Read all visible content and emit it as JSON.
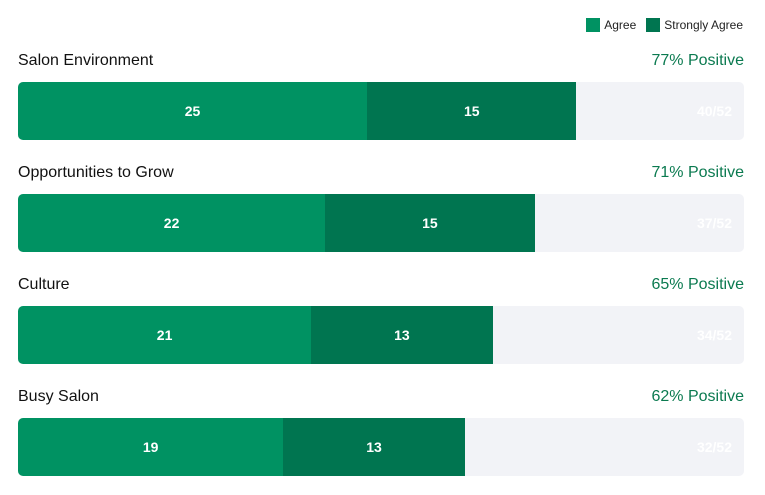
{
  "legend": [
    {
      "label": "Agree",
      "color": "#009262"
    },
    {
      "label": "Strongly Agree",
      "color": "#007550"
    }
  ],
  "colors": {
    "agree": "#009262",
    "strongly_agree": "#007550",
    "track": "#f2f3f7",
    "positive_text": "#0b7a50"
  },
  "chart_data": {
    "type": "bar",
    "orientation": "horizontal-stacked",
    "max": 52,
    "series": [
      {
        "name": "Agree",
        "values": [
          25,
          22,
          21,
          19
        ]
      },
      {
        "name": "Strongly Agree",
        "values": [
          15,
          15,
          13,
          13
        ]
      }
    ],
    "rows": [
      {
        "category": "Salon Environment",
        "agree": 25,
        "strongly_agree": 15,
        "positive": "77% Positive",
        "total_label": "40/52"
      },
      {
        "category": "Opportunities to Grow",
        "agree": 22,
        "strongly_agree": 15,
        "positive": "71% Positive",
        "total_label": "37/52"
      },
      {
        "category": "Culture",
        "agree": 21,
        "strongly_agree": 13,
        "positive": "65% Positive",
        "total_label": "34/52"
      },
      {
        "category": "Busy Salon",
        "agree": 19,
        "strongly_agree": 13,
        "positive": "62% Positive",
        "total_label": "32/52"
      }
    ]
  }
}
